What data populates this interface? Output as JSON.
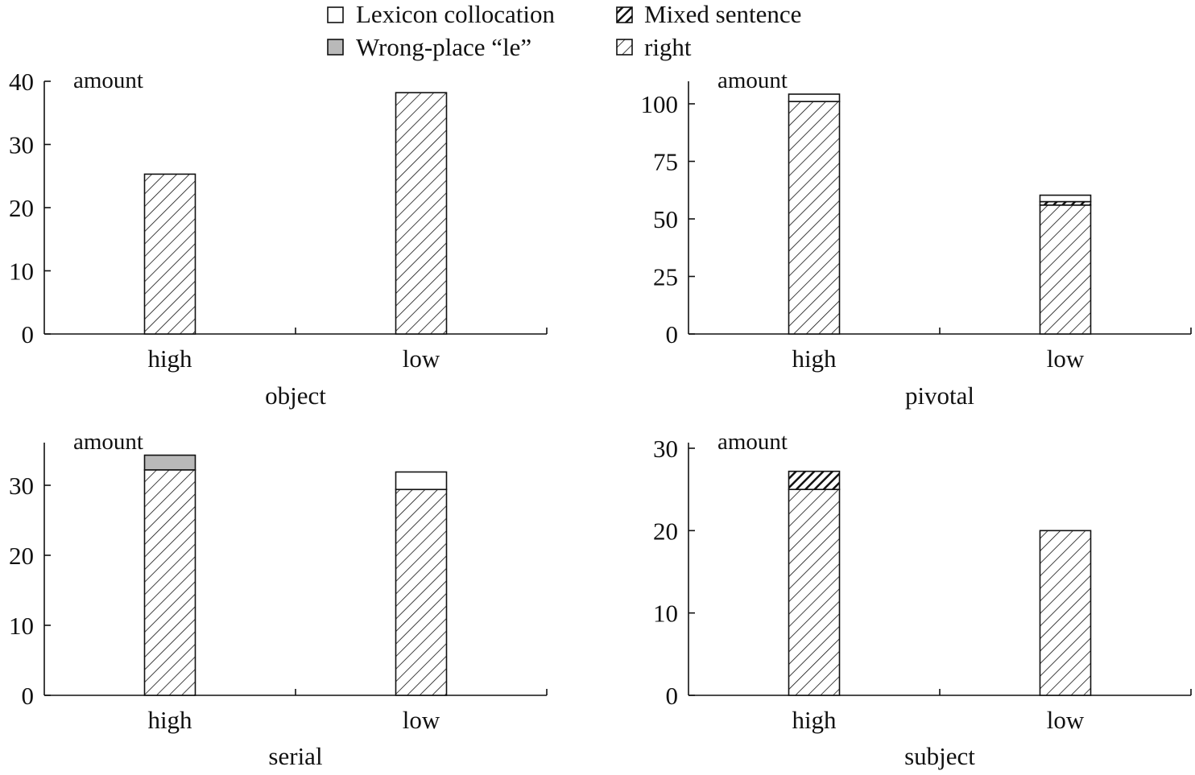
{
  "colors": {
    "ink": "#111111",
    "wrong_place_fill": "#b9b9b9",
    "background": "#ffffff"
  },
  "legend": {
    "placement": "top-center",
    "items": [
      {
        "key": "lexicon",
        "label": "Lexicon collocation",
        "pattern": "white"
      },
      {
        "key": "mixed",
        "label": "Mixed sentence",
        "pattern": "dense-diagonal"
      },
      {
        "key": "wrong",
        "label": "Wrong-place “le”",
        "pattern": "gray"
      },
      {
        "key": "right",
        "label": "right",
        "pattern": "diagonal"
      }
    ]
  },
  "chart_data": [
    {
      "type": "bar",
      "stacked": true,
      "title": "object",
      "ylabel": "amount",
      "categories": [
        "high",
        "low"
      ],
      "ylim": [
        0,
        40
      ],
      "yticks": [
        0,
        10,
        20,
        30,
        40
      ],
      "series": [
        {
          "name": "right",
          "values": [
            25.3,
            38.2
          ]
        },
        {
          "name": "Wrong-place “le”",
          "values": [
            0,
            0
          ]
        },
        {
          "name": "Mixed sentence",
          "values": [
            0,
            0
          ]
        },
        {
          "name": "Lexicon collocation",
          "values": [
            0,
            0
          ]
        }
      ]
    },
    {
      "type": "bar",
      "stacked": true,
      "title": "pivotal",
      "ylabel": "amount",
      "categories": [
        "high",
        "low"
      ],
      "ylim": [
        0,
        100
      ],
      "yticks": [
        0,
        25,
        50,
        75,
        100
      ],
      "series": [
        {
          "name": "right",
          "values": [
            101,
            56
          ]
        },
        {
          "name": "Wrong-place “le”",
          "values": [
            0,
            0
          ]
        },
        {
          "name": "Mixed sentence",
          "values": [
            0,
            1.5
          ]
        },
        {
          "name": "Lexicon collocation",
          "values": [
            3.2,
            2.8
          ]
        }
      ]
    },
    {
      "type": "bar",
      "stacked": true,
      "title": "serial",
      "ylabel": "amount",
      "categories": [
        "high",
        "low"
      ],
      "ylim": [
        0,
        30
      ],
      "yticks": [
        0,
        10,
        20,
        30
      ],
      "series": [
        {
          "name": "right",
          "values": [
            32.2,
            29.4
          ]
        },
        {
          "name": "Wrong-place “le”",
          "values": [
            2.1,
            0
          ]
        },
        {
          "name": "Mixed sentence",
          "values": [
            0,
            0
          ]
        },
        {
          "name": "Lexicon collocation",
          "values": [
            0,
            2.5
          ]
        }
      ]
    },
    {
      "type": "bar",
      "stacked": true,
      "title": "subject",
      "ylabel": "amount",
      "categories": [
        "high",
        "low"
      ],
      "ylim": [
        0,
        30
      ],
      "yticks": [
        0,
        10,
        20,
        30
      ],
      "series": [
        {
          "name": "right",
          "values": [
            25,
            20
          ]
        },
        {
          "name": "Wrong-place “le”",
          "values": [
            0,
            0
          ]
        },
        {
          "name": "Mixed sentence",
          "values": [
            2.2,
            0
          ]
        },
        {
          "name": "Lexicon collocation",
          "values": [
            0,
            0
          ]
        }
      ]
    }
  ]
}
